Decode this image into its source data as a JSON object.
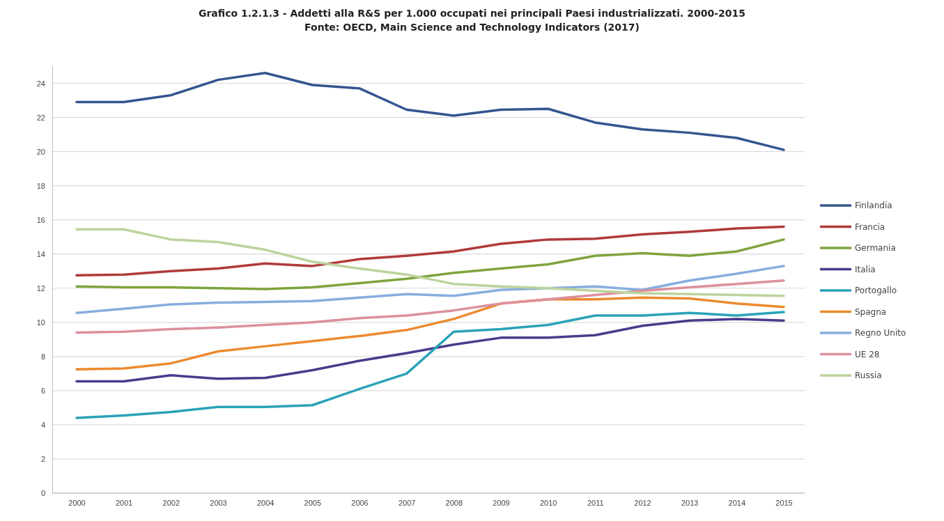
{
  "chart_data": {
    "type": "line",
    "title": "Grafico 1.2.1.3 -  Addetti alla R&S per 1.000 occupati nei principali Paesi industrializzati. 2000-2015",
    "subtitle": "Fonte: OECD, Main Science and Technology Indicators (2017)",
    "categories": [
      "2000",
      "2001",
      "2002",
      "2003",
      "2004",
      "2005",
      "2006",
      "2007",
      "2008",
      "2009",
      "2010",
      "2011",
      "2012",
      "2013",
      "2014",
      "2015"
    ],
    "ylim": [
      0,
      25
    ],
    "yticks": [
      0,
      2,
      4,
      6,
      8,
      10,
      12,
      14,
      16,
      18,
      20,
      22,
      24
    ],
    "grid": "y",
    "legend": "right",
    "line_style": "solid",
    "marker": "none",
    "series": [
      {
        "name": "Finlandia",
        "color": "#34558f",
        "values": [
          22.9,
          22.9,
          23.3,
          24.2,
          24.6,
          23.9,
          23.7,
          22.45,
          22.1,
          22.45,
          22.5,
          21.7,
          21.3,
          21.1,
          20.8,
          20.1
        ]
      },
      {
        "name": "Francia",
        "color": "#b03a3a",
        "values": [
          12.75,
          12.8,
          13.0,
          13.15,
          13.45,
          13.3,
          13.7,
          13.9,
          14.15,
          14.6,
          14.85,
          14.9,
          15.15,
          15.3,
          15.5,
          15.6
        ]
      },
      {
        "name": "Germania",
        "color": "#7ea43e",
        "values": [
          12.1,
          12.05,
          12.05,
          12.0,
          11.95,
          12.05,
          12.3,
          12.55,
          12.9,
          13.15,
          13.4,
          13.9,
          14.05,
          13.9,
          14.15,
          14.85
        ]
      },
      {
        "name": "Italia",
        "color": "#4b3a8c",
        "values": [
          6.55,
          6.55,
          6.9,
          6.7,
          6.75,
          7.2,
          7.75,
          8.2,
          8.7,
          9.1,
          9.1,
          9.25,
          9.8,
          10.1,
          10.2,
          10.1
        ]
      },
      {
        "name": "Portogallo",
        "color": "#2aa2b8",
        "values": [
          4.4,
          4.55,
          4.75,
          5.05,
          5.05,
          5.15,
          6.1,
          7.0,
          9.45,
          9.6,
          9.85,
          10.4,
          10.4,
          10.55,
          10.4,
          10.6
        ]
      },
      {
        "name": "Spagna",
        "color": "#ec8a2e",
        "values": [
          7.25,
          7.3,
          7.6,
          8.3,
          8.6,
          8.9,
          9.2,
          9.55,
          10.2,
          11.1,
          11.35,
          11.35,
          11.45,
          11.4,
          11.1,
          10.9
        ]
      },
      {
        "name": "Regno Unito",
        "color": "#86aede",
        "values": [
          10.55,
          10.8,
          11.05,
          11.15,
          11.2,
          11.25,
          11.45,
          11.65,
          11.55,
          11.9,
          12.0,
          12.1,
          11.9,
          12.45,
          12.85,
          13.3
        ]
      },
      {
        "name": "UE 28",
        "color": "#dc909c",
        "values": [
          9.4,
          9.45,
          9.6,
          9.7,
          9.85,
          10.0,
          10.25,
          10.4,
          10.7,
          11.1,
          11.35,
          11.6,
          11.85,
          12.05,
          12.25,
          12.45
        ]
      },
      {
        "name": "Russia",
        "color": "#bcd39c",
        "values": [
          15.45,
          15.45,
          14.85,
          14.7,
          14.25,
          13.55,
          13.15,
          12.8,
          12.25,
          12.1,
          12.0,
          11.85,
          11.7,
          11.65,
          11.6,
          11.55
        ]
      }
    ]
  }
}
